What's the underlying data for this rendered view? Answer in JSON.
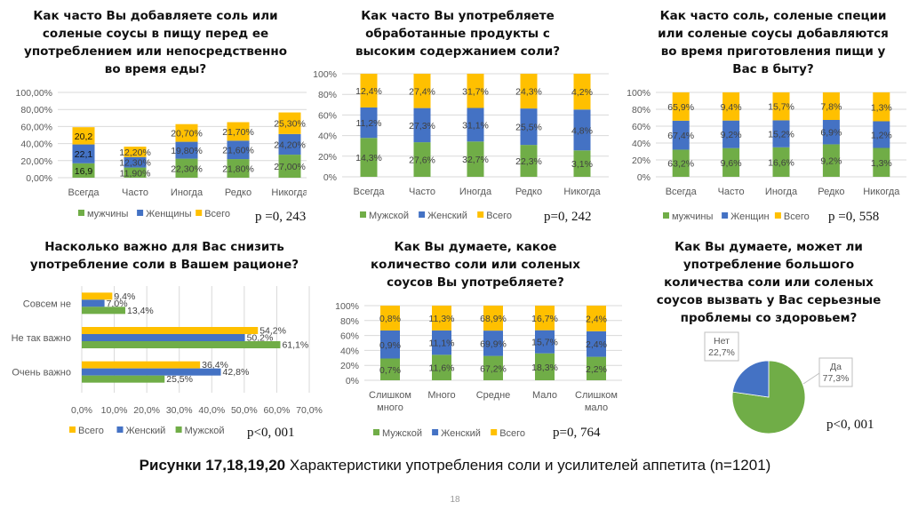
{
  "colors": {
    "green": "#70ad47",
    "blue": "#4472c4",
    "yellow": "#ffc000",
    "grid": "#d9d9d9",
    "axis_text": "#595959"
  },
  "caption": {
    "bold": "Рисунки 17,18,19,20",
    "text": " Характеристики употребления  соли и усилителей аппетита  (n=1201)"
  },
  "page_number": "18",
  "chart_data": [
    {
      "id": "chart1",
      "type": "bar",
      "stacked": true,
      "title": "Как часто Вы добавляете соль или соленые соусы в пищу перед ее употреблением или непосредственно во время еды?",
      "categories": [
        "Всегда",
        "Часто",
        "Иногда",
        "Редко",
        "Никогда"
      ],
      "series": [
        {
          "name": "мужчины",
          "color": "#70ad47",
          "values": [
            16.9,
            11.9,
            22.3,
            21.8,
            27.0
          ],
          "labels": [
            "16,9",
            "11,90%",
            "22,30%",
            "21,80%",
            "27,00%"
          ]
        },
        {
          "name": "Женщины",
          "color": "#4472c4",
          "values": [
            22.1,
            12.3,
            19.8,
            21.6,
            24.2
          ],
          "labels": [
            "22,1",
            "12,30%",
            "19,80%",
            "21,60%",
            "24,20%"
          ]
        },
        {
          "name": "Всего",
          "color": "#ffc000",
          "values": [
            20.2,
            12.2,
            20.7,
            21.7,
            25.3
          ],
          "labels": [
            "20,2",
            "12,20%",
            "20,70%",
            "21,70%",
            "25,30%"
          ]
        }
      ],
      "ylim": [
        0,
        100
      ],
      "yticks": [
        "0,00%",
        "20,00%",
        "40,00%",
        "60,00%",
        "80,00%",
        "100,00%"
      ],
      "grid": true,
      "legend": "bottom",
      "p_value": "p =0, 243"
    },
    {
      "id": "chart2",
      "type": "bar",
      "stacked": "percent",
      "title": "Как часто Вы употребляете обработанные продукты с высоким содержанием соли?",
      "categories": [
        "Всегда",
        "Часто",
        "Иногда",
        "Редко",
        "Никогда"
      ],
      "series": [
        {
          "name": "Мужской",
          "color": "#70ad47",
          "values": [
            14.3,
            27.6,
            32.7,
            22.3,
            3.1
          ],
          "labels": [
            "14,3%",
            "27,6%",
            "32,7%",
            "22,3%",
            "3,1%"
          ]
        },
        {
          "name": "Женский",
          "color": "#4472c4",
          "values": [
            11.2,
            27.3,
            31.1,
            25.5,
            4.8
          ],
          "labels": [
            "11,2%",
            "27,3%",
            "31,1%",
            "25,5%",
            "4,8%"
          ]
        },
        {
          "name": "Всего",
          "color": "#ffc000",
          "values": [
            12.4,
            27.4,
            31.7,
            24.3,
            4.2
          ],
          "labels": [
            "12,4%",
            "27,4%",
            "31,7%",
            "24,3%",
            "4,2%"
          ]
        }
      ],
      "ylim": [
        0,
        100
      ],
      "yticks": [
        "0%",
        "20%",
        "40%",
        "60%",
        "80%",
        "100%"
      ],
      "grid": true,
      "legend": "bottom",
      "p_value": "p=0, 242"
    },
    {
      "id": "chart3",
      "type": "bar",
      "stacked": "percent",
      "title": "Как часто соль, соленые специи или соленые соусы добавляются во время приготовления пищи у Вас в быту?",
      "categories": [
        "Всегда",
        "Часто",
        "Иногда",
        "Редко",
        "Никогда"
      ],
      "series": [
        {
          "name": "мужчины",
          "color": "#70ad47",
          "values": [
            63.2,
            9.6,
            16.6,
            9.2,
            1.3
          ],
          "labels": [
            "63,2%",
            "9,6%",
            "16,6%",
            "9,2%",
            "1,3%"
          ]
        },
        {
          "name": "Женщин",
          "color": "#4472c4",
          "values": [
            67.4,
            9.2,
            15.2,
            6.9,
            1.2
          ],
          "labels": [
            "67,4%",
            "9,2%",
            "15,2%",
            "6,9%",
            "1,2%"
          ]
        },
        {
          "name": "Всего",
          "color": "#ffc000",
          "values": [
            65.9,
            9.4,
            15.7,
            7.8,
            1.3
          ],
          "labels": [
            "65,9%",
            "9,4%",
            "15,7%",
            "7,8%",
            "1,3%"
          ]
        }
      ],
      "ylim": [
        0,
        100
      ],
      "yticks": [
        "0%",
        "20%",
        "40%",
        "60%",
        "80%",
        "100%"
      ],
      "grid": true,
      "legend": "bottom",
      "p_value": "p =0, 558"
    },
    {
      "id": "chart4",
      "type": "bar",
      "orientation": "horizontal",
      "title": "Насколько важно для Вас снизить употребление соли в Вашем рационе?",
      "categories": [
        "Совсем не",
        "Не так важно",
        "Очень важно"
      ],
      "series": [
        {
          "name": "Всего",
          "color": "#ffc000",
          "values": [
            9.4,
            54.2,
            36.4
          ],
          "labels": [
            "9,4%",
            "54,2%",
            "36,4%"
          ]
        },
        {
          "name": "Женский",
          "color": "#4472c4",
          "values": [
            7.0,
            50.2,
            42.8
          ],
          "labels": [
            "7,0%",
            "50,2%",
            "42,8%"
          ]
        },
        {
          "name": "Мужской",
          "color": "#70ad47",
          "values": [
            13.4,
            61.1,
            25.5
          ],
          "labels": [
            "13,4%",
            "61,1%",
            "25,5%"
          ]
        }
      ],
      "xlim": [
        0,
        70
      ],
      "xticks": [
        "0,0%",
        "10,0%",
        "20,0%",
        "30,0%",
        "40,0%",
        "50,0%",
        "60,0%",
        "70,0%"
      ],
      "grid": true,
      "legend": "bottom",
      "p_value": "p<0, 001"
    },
    {
      "id": "chart5",
      "type": "bar",
      "stacked": "percent",
      "title": "Как Вы думаете, какое количество соли или соленых соусов Вы употребляете?",
      "categories": [
        "Слишком много",
        "Много",
        "Средне",
        "Мало",
        "Слишком мало"
      ],
      "category_lines": [
        [
          "Слишком",
          "много"
        ],
        [
          "Много"
        ],
        [
          "Средне"
        ],
        [
          "Мало"
        ],
        [
          "Слишком",
          "мало"
        ]
      ],
      "series": [
        {
          "name": "Мужской",
          "color": "#70ad47",
          "values": [
            0.7,
            11.6,
            67.2,
            18.3,
            2.2
          ],
          "labels": [
            "0,7%",
            "11,6%",
            "67,2%",
            "18,3%",
            "2,2%"
          ]
        },
        {
          "name": "Женский",
          "color": "#4472c4",
          "values": [
            0.9,
            11.1,
            69.9,
            15.7,
            2.4
          ],
          "labels": [
            "0,9%",
            "11,1%",
            "69,9%",
            "15,7%",
            "2,4%"
          ]
        },
        {
          "name": "Всего",
          "color": "#ffc000",
          "values": [
            0.8,
            11.3,
            68.9,
            16.7,
            2.4
          ],
          "labels": [
            "0,8%",
            "11,3%",
            "68,9%",
            "16,7%",
            "2,4%"
          ]
        }
      ],
      "ylim": [
        0,
        100
      ],
      "yticks": [
        "0%",
        "20%",
        "40%",
        "60%",
        "80%",
        "100%"
      ],
      "grid": true,
      "legend": "bottom",
      "p_value": "p=0, 764"
    },
    {
      "id": "chart6",
      "type": "pie",
      "title": "Как Вы думаете, может ли употребление большого количества соли или соленых соусов вызвать у Вас серьезные проблемы со здоровьем?",
      "slices": [
        {
          "name": "Да",
          "value": 77.3,
          "label": "77,3%",
          "color": "#70ad47"
        },
        {
          "name": "Нет",
          "value": 22.7,
          "label": "22,7%",
          "color": "#4472c4"
        }
      ],
      "p_value": "p<0, 001"
    }
  ]
}
